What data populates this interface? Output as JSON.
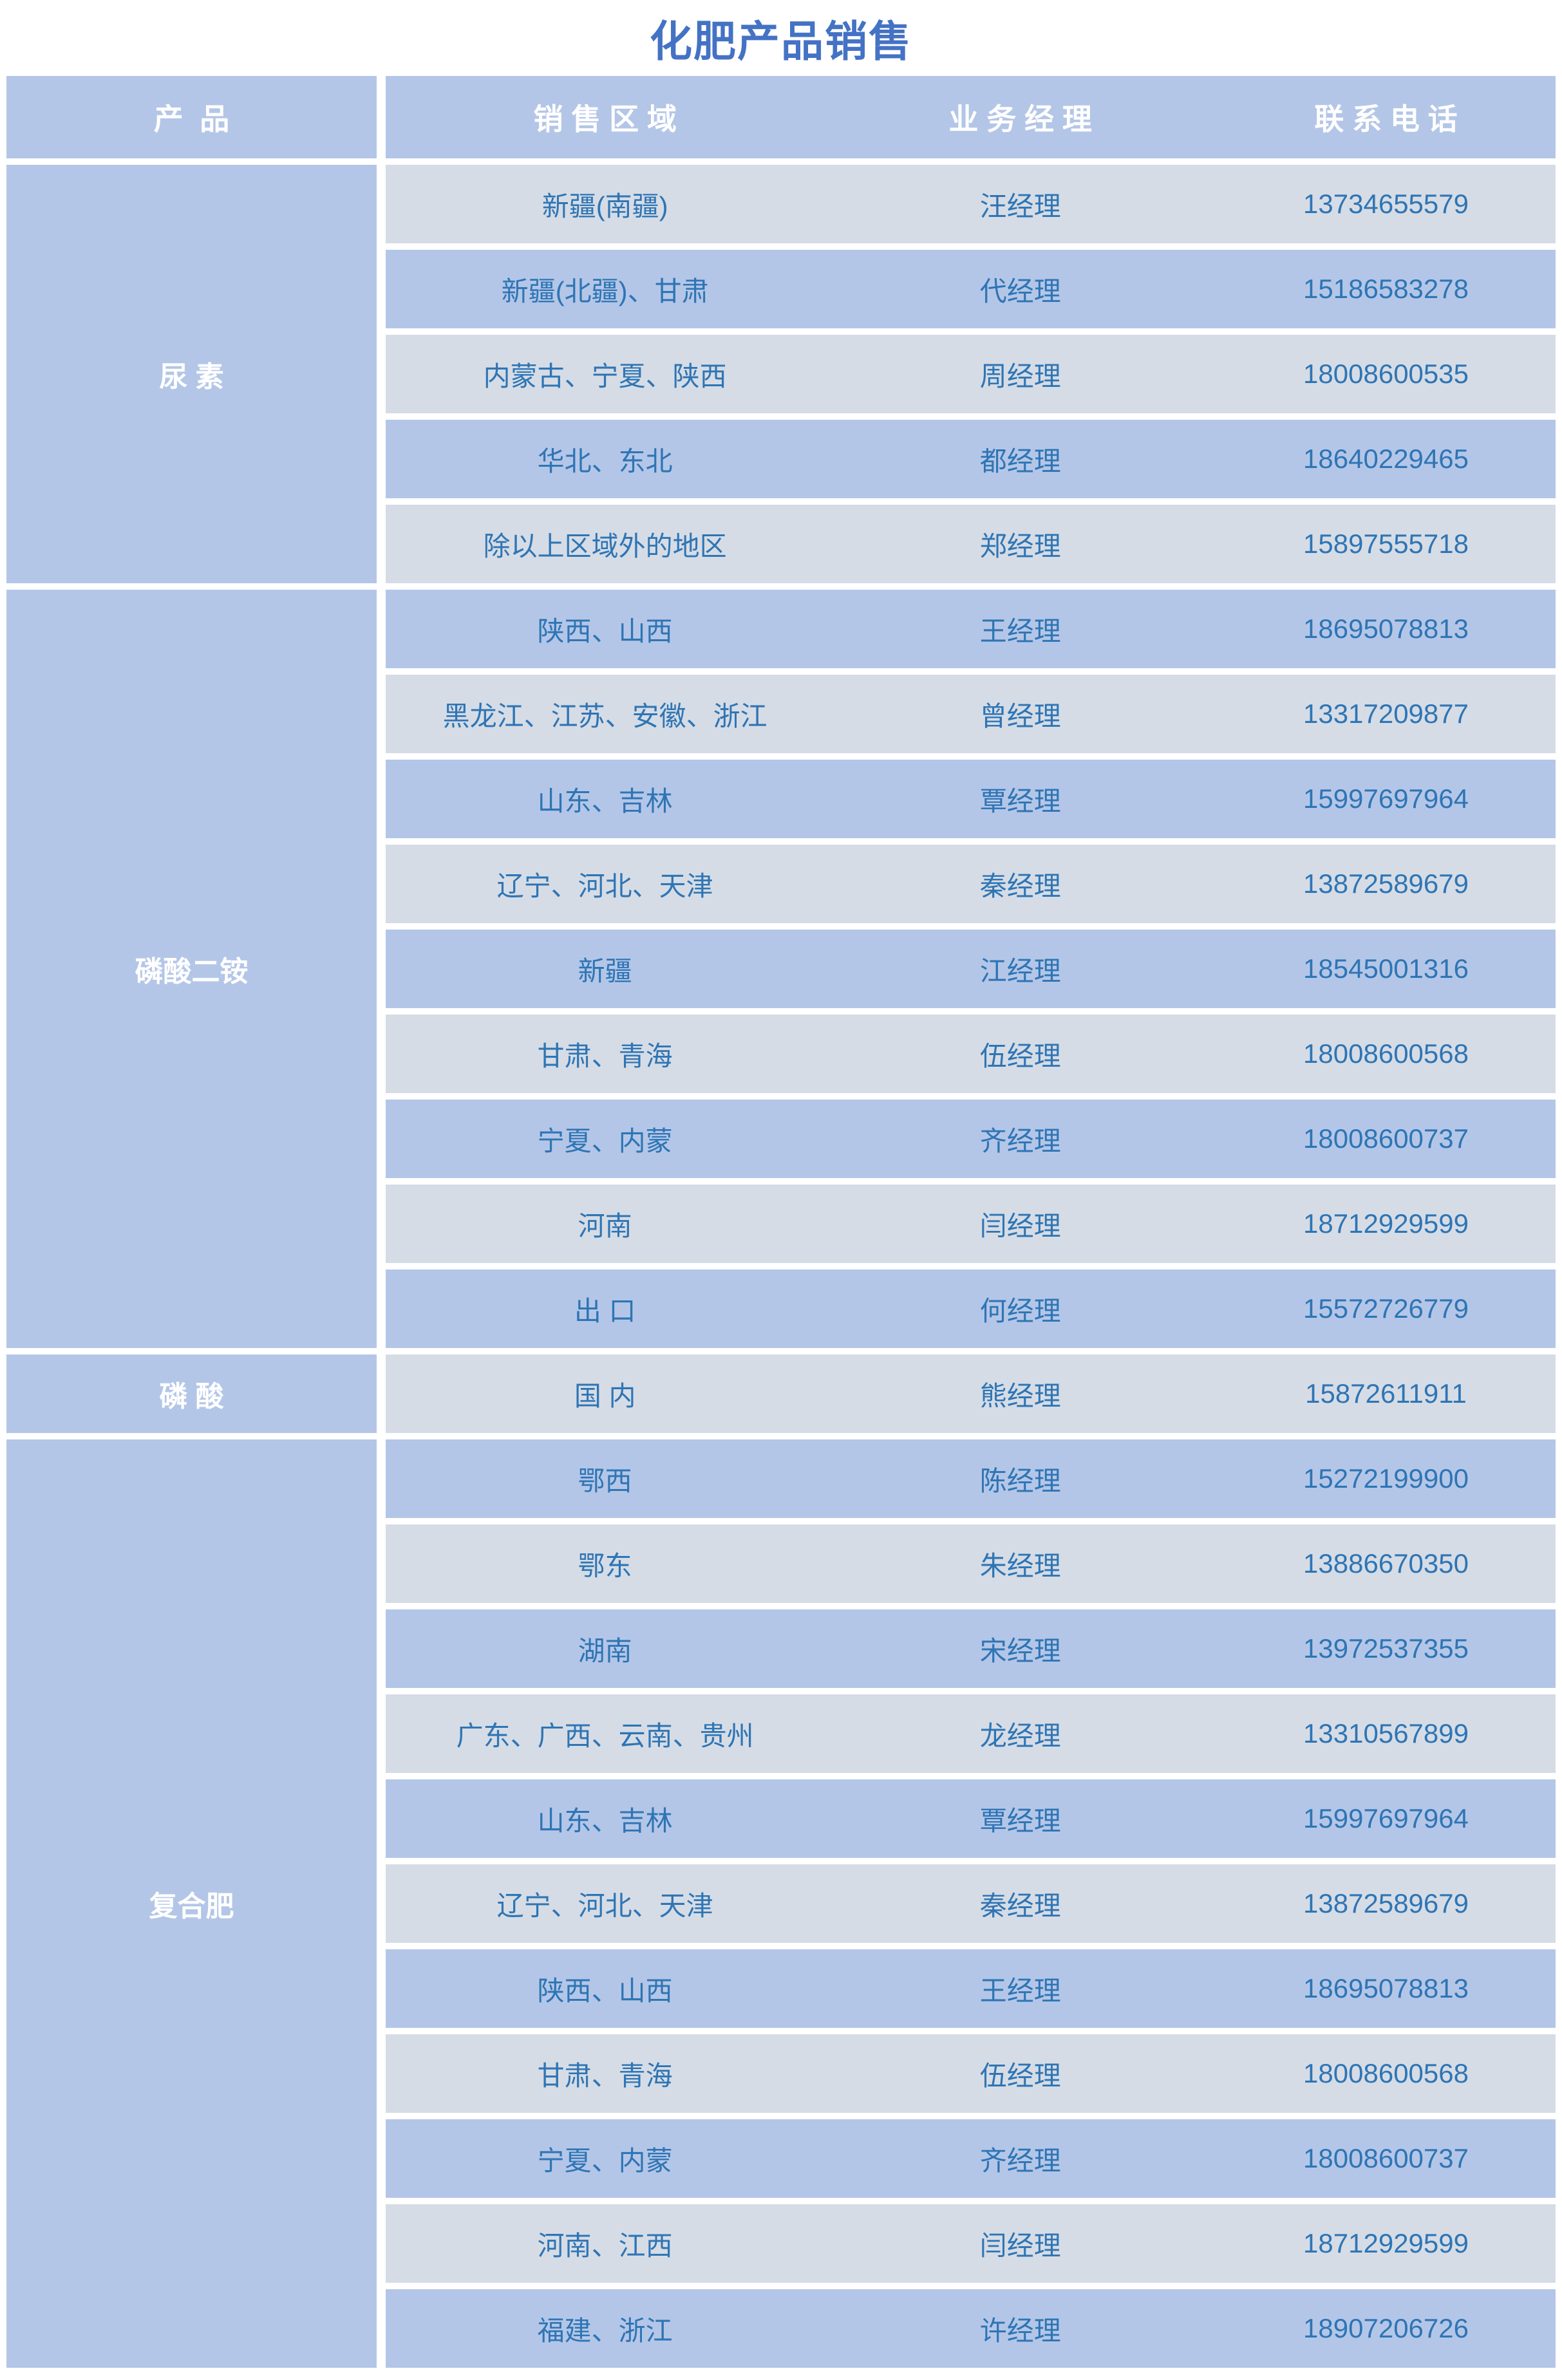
{
  "title": "化肥产品销售",
  "colors": {
    "title": "#4472C4",
    "header_bg": "#B4C6E7",
    "row_blue": "#B4C6E7",
    "row_gray": "#D6DCE5",
    "cell_text": "#2E75B5",
    "header_text": "#FFFFFF"
  },
  "table": {
    "headers": {
      "product": "产  品",
      "region": "销 售 区 域",
      "manager": "业 务 经 理",
      "phone": "联 系 电 话"
    },
    "groups": [
      {
        "product": "尿 素",
        "rows": [
          {
            "region": "新疆(南疆)",
            "manager": "汪经理",
            "phone": "13734655579"
          },
          {
            "region": "新疆(北疆)、甘肃",
            "manager": "代经理",
            "phone": "15186583278"
          },
          {
            "region": "内蒙古、宁夏、陕西",
            "manager": "周经理",
            "phone": "18008600535"
          },
          {
            "region": "华北、东北",
            "manager": "都经理",
            "phone": "18640229465"
          },
          {
            "region": "除以上区域外的地区",
            "manager": "郑经理",
            "phone": "15897555718"
          }
        ]
      },
      {
        "product": "磷酸二铵",
        "rows": [
          {
            "region": "陕西、山西",
            "manager": "王经理",
            "phone": "18695078813"
          },
          {
            "region": "黑龙江、江苏、安徽、浙江",
            "manager": "曾经理",
            "phone": "13317209877"
          },
          {
            "region": "山东、吉林",
            "manager": "覃经理",
            "phone": "15997697964"
          },
          {
            "region": "辽宁、河北、天津",
            "manager": "秦经理",
            "phone": "13872589679"
          },
          {
            "region": "新疆",
            "manager": "江经理",
            "phone": "18545001316"
          },
          {
            "region": "甘肃、青海",
            "manager": "伍经理",
            "phone": "18008600568"
          },
          {
            "region": "宁夏、内蒙",
            "manager": "齐经理",
            "phone": "18008600737"
          },
          {
            "region": "河南",
            "manager": "闫经理",
            "phone": "18712929599"
          },
          {
            "region": "出 口",
            "manager": "何经理",
            "phone": "15572726779"
          }
        ]
      },
      {
        "product": "磷 酸",
        "rows": [
          {
            "region": "国 内",
            "manager": "熊经理",
            "phone": "15872611911"
          }
        ]
      },
      {
        "product": "复合肥",
        "rows": [
          {
            "region": "鄂西",
            "manager": "陈经理",
            "phone": "15272199900"
          },
          {
            "region": "鄂东",
            "manager": "朱经理",
            "phone": "13886670350"
          },
          {
            "region": "湖南",
            "manager": "宋经理",
            "phone": "13972537355"
          },
          {
            "region": "广东、广西、云南、贵州",
            "manager": "龙经理",
            "phone": "13310567899"
          },
          {
            "region": "山东、吉林",
            "manager": "覃经理",
            "phone": "15997697964"
          },
          {
            "region": "辽宁、河北、天津",
            "manager": "秦经理",
            "phone": "13872589679"
          },
          {
            "region": "陕西、山西",
            "manager": "王经理",
            "phone": "18695078813"
          },
          {
            "region": "甘肃、青海",
            "manager": "伍经理",
            "phone": "18008600568"
          },
          {
            "region": "宁夏、内蒙",
            "manager": "齐经理",
            "phone": "18008600737"
          },
          {
            "region": "河南、江西",
            "manager": "闫经理",
            "phone": "18712929599"
          },
          {
            "region": "福建、浙江",
            "manager": "许经理",
            "phone": "18907206726"
          }
        ]
      }
    ]
  }
}
